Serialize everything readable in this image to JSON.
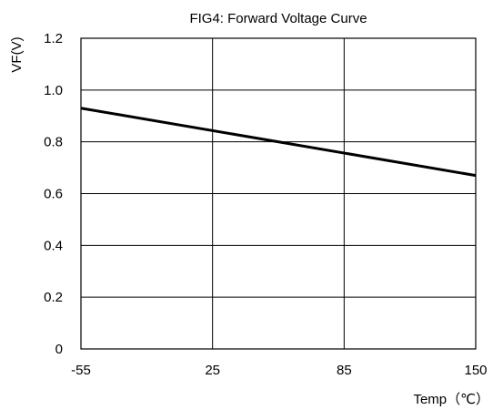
{
  "chart_data": {
    "type": "line",
    "title": "FIG4: Forward Voltage Curve",
    "xlabel": "Temp（℃）",
    "ylabel": "VF(V)",
    "x_ticks": [
      "-55",
      "25",
      "85",
      "150"
    ],
    "y_ticks": [
      "0",
      "0.2",
      "0.4",
      "0.6",
      "0.8",
      "1.0",
      "1.2"
    ],
    "ylim": [
      0,
      1.2
    ],
    "grid": true,
    "series": [
      {
        "x": [
          -55,
          150
        ],
        "y": [
          0.93,
          0.67
        ],
        "color": "#000000"
      }
    ]
  }
}
